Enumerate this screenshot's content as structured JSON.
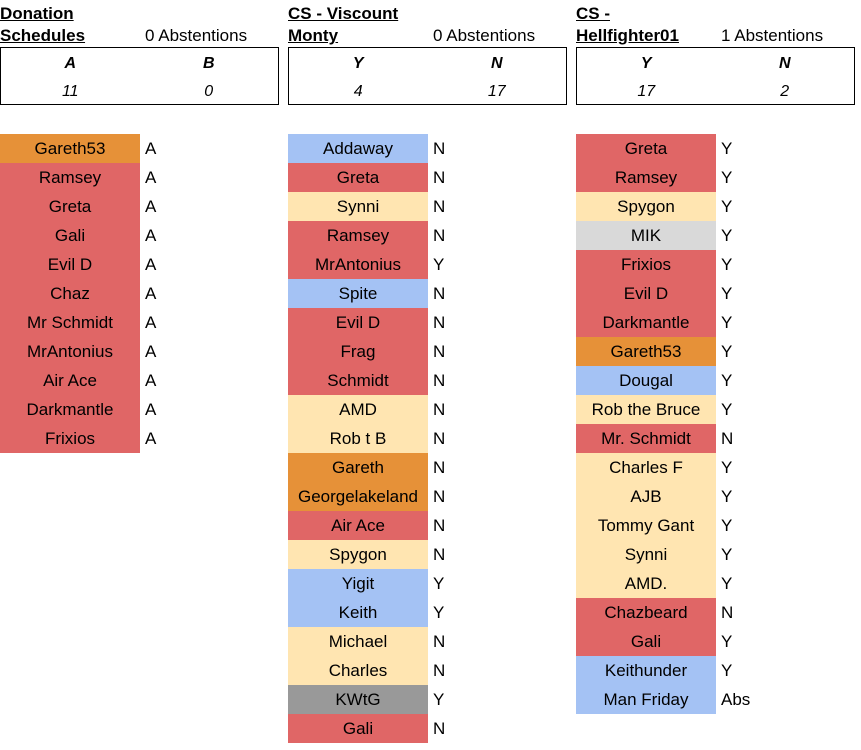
{
  "colors": {
    "red": "#e06666",
    "orange": "#e69138",
    "yellow": "#ffe5b1",
    "blue": "#a4c2f4",
    "lightgray": "#d9d9d9",
    "darkgray": "#999999"
  },
  "sections": [
    {
      "title_line1": "Donation",
      "title_line2": "Schedules",
      "abstentions": "0 Abstentions",
      "options": [
        "A",
        "B"
      ],
      "counts": [
        "11",
        "0"
      ],
      "votes": [
        {
          "name": "Gareth53",
          "vote": "A",
          "color": "orange"
        },
        {
          "name": "Ramsey",
          "vote": "A",
          "color": "red"
        },
        {
          "name": "Greta",
          "vote": "A",
          "color": "red"
        },
        {
          "name": "Gali",
          "vote": "A",
          "color": "red"
        },
        {
          "name": "Evil D",
          "vote": "A",
          "color": "red"
        },
        {
          "name": "Chaz",
          "vote": "A",
          "color": "red"
        },
        {
          "name": "Mr Schmidt",
          "vote": "A",
          "color": "red"
        },
        {
          "name": "MrAntonius",
          "vote": "A",
          "color": "red"
        },
        {
          "name": "Air Ace",
          "vote": "A",
          "color": "red"
        },
        {
          "name": "Darkmantle",
          "vote": "A",
          "color": "red"
        },
        {
          "name": "Frixios",
          "vote": "A",
          "color": "red"
        }
      ]
    },
    {
      "title_line1": "CS - Viscount",
      "title_line2": "Monty",
      "abstentions": "0 Abstentions",
      "options": [
        "Y",
        "N"
      ],
      "counts": [
        "4",
        "17"
      ],
      "votes": [
        {
          "name": "Addaway",
          "vote": "N",
          "color": "blue"
        },
        {
          "name": "Greta",
          "vote": "N",
          "color": "red"
        },
        {
          "name": "Synni",
          "vote": "N",
          "color": "yellow"
        },
        {
          "name": "Ramsey",
          "vote": "N",
          "color": "red"
        },
        {
          "name": "MrAntonius",
          "vote": "Y",
          "color": "red"
        },
        {
          "name": "Spite",
          "vote": "N",
          "color": "blue"
        },
        {
          "name": "Evil D",
          "vote": "N",
          "color": "red"
        },
        {
          "name": "Frag",
          "vote": "N",
          "color": "red"
        },
        {
          "name": "Schmidt",
          "vote": "N",
          "color": "red"
        },
        {
          "name": "AMD",
          "vote": "N",
          "color": "yellow"
        },
        {
          "name": "Rob t B",
          "vote": "N",
          "color": "yellow"
        },
        {
          "name": "Gareth",
          "vote": "N",
          "color": "orange"
        },
        {
          "name": "Georgelakeland",
          "vote": "N",
          "color": "orange"
        },
        {
          "name": "Air Ace",
          "vote": "N",
          "color": "red"
        },
        {
          "name": "Spygon",
          "vote": "N",
          "color": "yellow"
        },
        {
          "name": "Yigit",
          "vote": "Y",
          "color": "blue"
        },
        {
          "name": "Keith",
          "vote": "Y",
          "color": "blue"
        },
        {
          "name": "Michael",
          "vote": "N",
          "color": "yellow"
        },
        {
          "name": "Charles",
          "vote": "N",
          "color": "yellow"
        },
        {
          "name": "KWtG",
          "vote": "Y",
          "color": "darkgray"
        },
        {
          "name": "Gali",
          "vote": "N",
          "color": "red"
        }
      ]
    },
    {
      "title_line1": "CS -",
      "title_line2": "Hellfighter01",
      "abstentions": "1 Abstentions",
      "options": [
        "Y",
        "N"
      ],
      "counts": [
        "17",
        "2"
      ],
      "votes": [
        {
          "name": "Greta",
          "vote": "Y",
          "color": "red"
        },
        {
          "name": "Ramsey",
          "vote": "Y",
          "color": "red"
        },
        {
          "name": "Spygon",
          "vote": "Y",
          "color": "yellow"
        },
        {
          "name": "MIK",
          "vote": "Y",
          "color": "lightgray"
        },
        {
          "name": "Frixios",
          "vote": "Y",
          "color": "red"
        },
        {
          "name": "Evil D",
          "vote": "Y",
          "color": "red"
        },
        {
          "name": "Darkmantle",
          "vote": "Y",
          "color": "red"
        },
        {
          "name": "Gareth53",
          "vote": "Y",
          "color": "orange"
        },
        {
          "name": "Dougal",
          "vote": "Y",
          "color": "blue"
        },
        {
          "name": "Rob the Bruce",
          "vote": "Y",
          "color": "yellow"
        },
        {
          "name": "Mr. Schmidt",
          "vote": "N",
          "color": "red"
        },
        {
          "name": "Charles F",
          "vote": "Y",
          "color": "yellow"
        },
        {
          "name": "AJB",
          "vote": "Y",
          "color": "yellow"
        },
        {
          "name": "Tommy Gant",
          "vote": "Y",
          "color": "yellow"
        },
        {
          "name": "Synni",
          "vote": "Y",
          "color": "yellow"
        },
        {
          "name": "AMD.",
          "vote": "Y",
          "color": "yellow"
        },
        {
          "name": "Chazbeard",
          "vote": "N",
          "color": "red"
        },
        {
          "name": "Gali",
          "vote": "Y",
          "color": "red"
        },
        {
          "name": "Keithunder",
          "vote": "Y",
          "color": "blue"
        },
        {
          "name": "Man Friday",
          "vote": "Abs",
          "color": "blue"
        }
      ]
    }
  ]
}
